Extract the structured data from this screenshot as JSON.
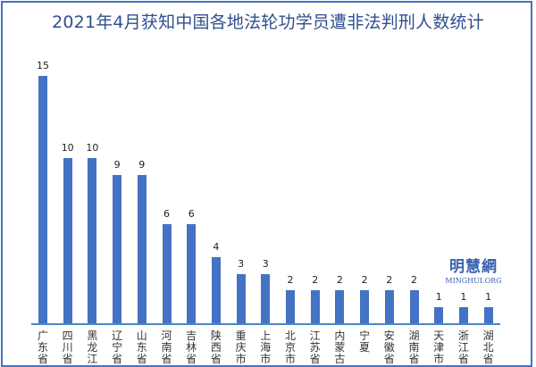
{
  "title": "2021年4月获知中国各地法轮功学员遭非法判刑人数统计",
  "watermark": {
    "cn": "明慧網",
    "en": "MINGHUI.ORG"
  },
  "colors": {
    "bar": "#4472c4",
    "axis": "#4a86c8",
    "title": "#2f4f8f",
    "border": "#4472c4"
  },
  "chart_data": {
    "type": "bar",
    "title": "2021年4月获知中国各地法轮功学员遭非法判刑人数统计",
    "xlabel": "",
    "ylabel": "",
    "categories": [
      "广东省",
      "四川省",
      "黑龙江",
      "辽宁省",
      "山东省",
      "河南省",
      "吉林省",
      "陕西省",
      "重庆市",
      "上海市",
      "北京市",
      "江苏省",
      "内蒙古",
      "宁夏",
      "安徽省",
      "湖南省",
      "天津市",
      "浙江省",
      "湖北省"
    ],
    "values": [
      15,
      10,
      10,
      9,
      9,
      6,
      6,
      4,
      3,
      3,
      2,
      2,
      2,
      2,
      2,
      2,
      1,
      1,
      1
    ],
    "ylim": [
      0,
      15
    ],
    "grid": false,
    "legend": "none",
    "data_labels": true
  }
}
